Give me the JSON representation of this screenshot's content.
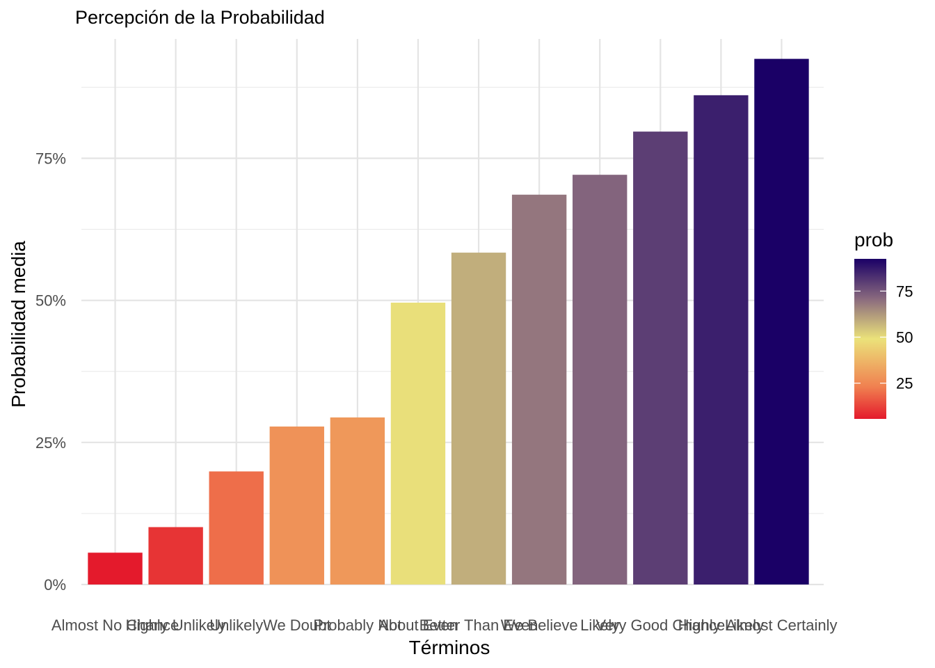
{
  "chart_data": {
    "type": "bar",
    "title": "Percepción de la Probabilidad",
    "xlabel": "Términos",
    "ylabel": "Probabilidad media",
    "categories": [
      "Almost No Chance",
      "Highly Unlikely",
      "Unlikely",
      "We Doubt",
      "Probably Not",
      "About Even",
      "Better Than Even",
      "We Believe",
      "Likely",
      "Very Good Chance",
      "Highly Likely",
      "Almost Certainly"
    ],
    "values": [
      5.6,
      10.1,
      19.9,
      27.8,
      29.4,
      49.6,
      58.4,
      68.6,
      72.1,
      79.7,
      86.1,
      92.5
    ],
    "ylim": [
      0,
      96
    ],
    "yticks": [
      0,
      25,
      50,
      75
    ],
    "ytick_labels": [
      "0%",
      "25%",
      "50%",
      "75%"
    ],
    "grid": true,
    "legend": {
      "title": "prob",
      "position": "right",
      "ticks": [
        25,
        50,
        75
      ],
      "tick_labels": [
        "25",
        "50",
        "75"
      ],
      "range": [
        5.6,
        92.5
      ],
      "colors": [
        "#e41a2c",
        "#f08050",
        "#ebe27a",
        "#8a6a7e",
        "#1a0066"
      ]
    }
  }
}
